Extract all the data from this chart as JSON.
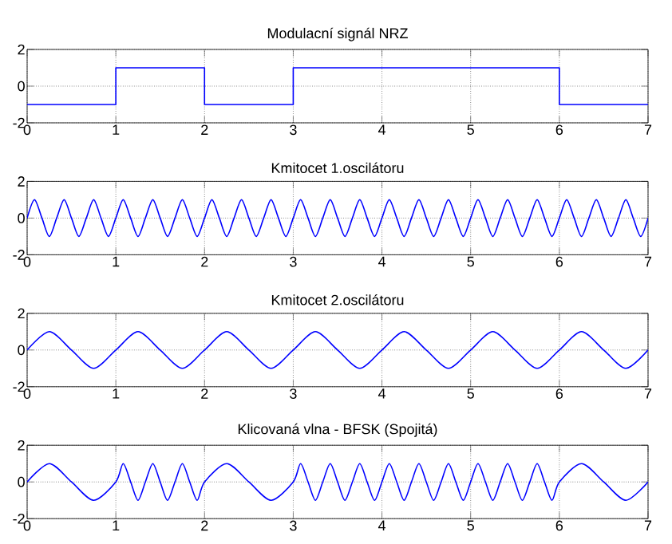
{
  "chart_data": [
    {
      "type": "step",
      "title": "Modulacní signál NRZ",
      "x": [
        0,
        1,
        2,
        3,
        6,
        7
      ],
      "values": [
        -1,
        1,
        -1,
        1,
        -1,
        -1
      ],
      "color": "#0000ff",
      "xlim": [
        0,
        7
      ],
      "ylim": [
        -2,
        2
      ],
      "xticks": [
        0,
        1,
        2,
        3,
        4,
        5,
        6,
        7
      ],
      "yticks": [
        -2,
        0,
        2
      ],
      "grid": true
    },
    {
      "type": "line",
      "title": "Kmitocet 1.oscilátoru",
      "x": [
        0,
        0.083,
        0.167,
        0.25,
        0.333,
        0.417,
        0.5,
        0.583,
        0.667,
        0.75,
        0.833,
        0.917,
        1,
        1.083,
        1.167,
        1.25,
        1.333,
        1.417,
        1.5,
        1.583,
        1.667,
        1.75,
        1.833,
        1.917,
        2,
        2.083,
        2.167,
        2.25,
        2.333,
        2.417,
        2.5,
        2.583,
        2.667,
        2.75,
        2.833,
        2.917,
        3,
        3.083,
        3.167,
        3.25,
        3.333,
        3.417,
        3.5,
        3.583,
        3.667,
        3.75,
        3.833,
        3.917,
        4,
        4.083,
        4.167,
        4.25,
        4.333,
        4.417,
        4.5,
        4.583,
        4.667,
        4.75,
        4.833,
        4.917,
        5,
        5.083,
        5.167,
        5.25,
        5.333,
        5.417,
        5.5,
        5.583,
        5.667,
        5.75,
        5.833,
        5.917,
        6,
        6.083,
        6.167,
        6.25,
        6.333,
        6.417,
        6.5,
        6.583,
        6.667,
        6.75,
        6.833,
        6.917,
        7
      ],
      "values": [
        0,
        1,
        0,
        -1,
        0,
        1,
        0,
        -1,
        0,
        1,
        0,
        -1,
        0,
        1,
        0,
        -1,
        0,
        1,
        0,
        -1,
        0,
        1,
        0,
        -1,
        0,
        1,
        0,
        -1,
        0,
        1,
        0,
        -1,
        0,
        1,
        0,
        -1,
        0,
        1,
        0,
        -1,
        0,
        1,
        0,
        -1,
        0,
        1,
        0,
        -1,
        0,
        1,
        0,
        -1,
        0,
        1,
        0,
        -1,
        0,
        1,
        0,
        -1,
        0,
        1,
        0,
        -1,
        0,
        1,
        0,
        -1,
        0,
        1,
        0,
        -1,
        0,
        1,
        0,
        -1,
        0,
        1,
        0,
        -1,
        0,
        1,
        0,
        -1,
        0
      ],
      "color": "#0000ff",
      "xlim": [
        0,
        7
      ],
      "ylim": [
        -2,
        2
      ],
      "xticks": [
        0,
        1,
        2,
        3,
        4,
        5,
        6,
        7
      ],
      "yticks": [
        -2,
        0,
        2
      ],
      "grid": true
    },
    {
      "type": "line",
      "title": "Kmitocet 2.oscilátoru",
      "x": [
        0,
        0.25,
        0.5,
        0.75,
        1,
        1.25,
        1.5,
        1.75,
        2,
        2.25,
        2.5,
        2.75,
        3,
        3.25,
        3.5,
        3.75,
        4,
        4.25,
        4.5,
        4.75,
        5,
        5.25,
        5.5,
        5.75,
        6,
        6.25,
        6.5,
        6.75,
        7
      ],
      "values": [
        0,
        1,
        0,
        -1,
        0,
        1,
        0,
        -1,
        0,
        1,
        0,
        -1,
        0,
        1,
        0,
        -1,
        0,
        1,
        0,
        -1,
        0,
        1,
        0,
        -1,
        0,
        1,
        0,
        -1,
        0
      ],
      "color": "#0000ff",
      "xlim": [
        0,
        7
      ],
      "ylim": [
        -2,
        2
      ],
      "xticks": [
        0,
        1,
        2,
        3,
        4,
        5,
        6,
        7
      ],
      "yticks": [
        -2,
        0,
        2
      ],
      "grid": true
    },
    {
      "type": "line",
      "title": "Klicovaná vlna - BFSK (Spojitá)",
      "x": [
        0,
        0.25,
        0.5,
        0.75,
        1,
        1.083,
        1.167,
        1.25,
        1.333,
        1.417,
        1.5,
        1.583,
        1.667,
        1.75,
        1.833,
        1.917,
        2,
        2.25,
        2.5,
        2.75,
        3,
        3.083,
        3.167,
        3.25,
        3.333,
        3.417,
        3.5,
        3.583,
        3.667,
        3.75,
        3.833,
        3.917,
        4,
        4.083,
        4.167,
        4.25,
        4.333,
        4.417,
        4.5,
        4.583,
        4.667,
        4.75,
        4.833,
        4.917,
        5,
        5.083,
        5.167,
        5.25,
        5.333,
        5.417,
        5.5,
        5.583,
        5.667,
        5.75,
        5.833,
        5.917,
        6,
        6.25,
        6.5,
        6.75,
        7
      ],
      "values": [
        0,
        1,
        0,
        -1,
        0,
        1,
        0,
        -1,
        0,
        1,
        0,
        -1,
        0,
        1,
        0,
        -1,
        0,
        1,
        0,
        -1,
        0,
        1,
        0,
        -1,
        0,
        1,
        0,
        -1,
        0,
        1,
        0,
        -1,
        0,
        1,
        0,
        -1,
        0,
        1,
        0,
        -1,
        0,
        1,
        0,
        -1,
        0,
        1,
        0,
        -1,
        0,
        1,
        0,
        -1,
        0,
        1,
        0,
        -1,
        0,
        1,
        0,
        -1,
        0
      ],
      "color": "#0000ff",
      "xlim": [
        0,
        7
      ],
      "ylim": [
        -2,
        2
      ],
      "xticks": [
        0,
        1,
        2,
        3,
        4,
        5,
        6,
        7
      ],
      "yticks": [
        -2,
        0,
        2
      ],
      "grid": true
    }
  ]
}
